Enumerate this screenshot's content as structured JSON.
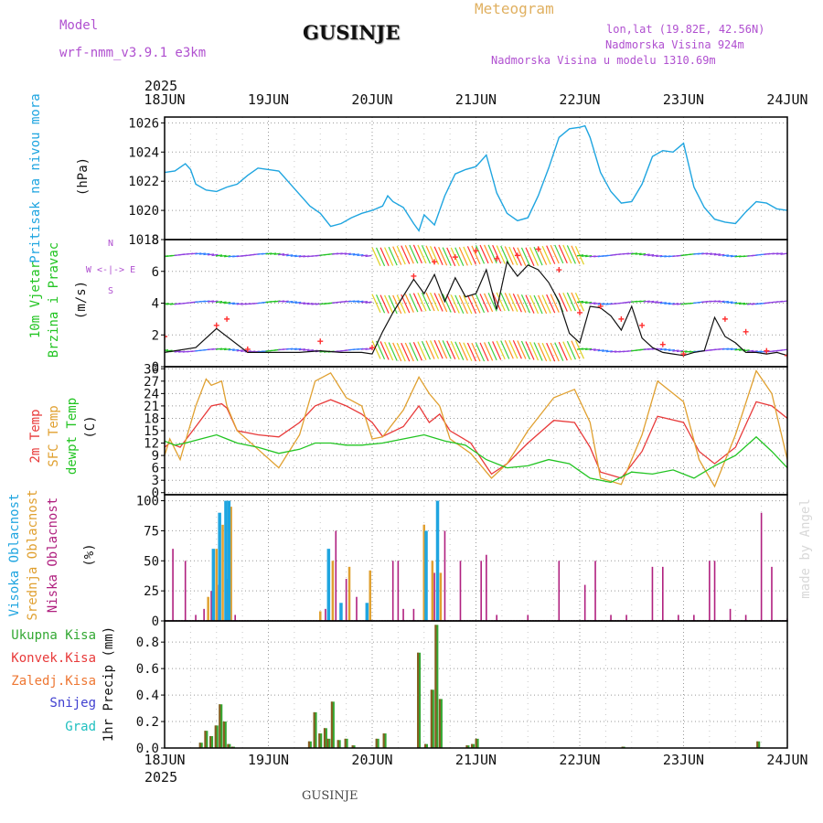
{
  "header": {
    "model_label": "Model",
    "model_name": "wrf-nmm_v3.9.1 e3km",
    "station": "GUSINJE",
    "kind": "Meteogram",
    "lonlat": "lon,lat (19.82E, 42.56N)",
    "elevation": "Nadmorska Visina 924m",
    "model_elevation": "Nadmorska Visina u modelu 1310.69m",
    "year": "2025",
    "footer_station": "GUSINJE",
    "watermark": "made by Angel"
  },
  "colors": {
    "pressure": "#1fa5e0",
    "temp2m": "#e83a3a",
    "sfc": "#e0a030",
    "dewpt": "#22c422",
    "low_cloud": "#b0207f",
    "mid_cloud": "#e0a030",
    "high_cloud": "#1fa5e0",
    "purple": "#b050d0",
    "total_precip": "#33a833",
    "conv_precip": "#e83a3a",
    "frozen": "#ee7733",
    "snow": "#4040d0",
    "grad": "#20c0c0",
    "gray_label": "#777777"
  },
  "chart_data": [
    {
      "id": "pressure",
      "type": "line",
      "title": "Pritisak na nivou mora",
      "ylabel": "(hPa)",
      "x_start": "18JUN",
      "x_end": "24JUN",
      "x_tick_labels": [
        "18JUN",
        "19JUN",
        "20JUN",
        "21JUN",
        "22JUN",
        "23JUN",
        "24JUN"
      ],
      "yticks": [
        1018,
        1020,
        1022,
        1024,
        1026
      ],
      "ylim": [
        1018,
        1026.4
      ],
      "series": [
        {
          "name": "MSLP",
          "x": [
            0,
            0.1,
            0.2,
            0.25,
            0.3,
            0.4,
            0.5,
            0.6,
            0.7,
            0.8,
            0.9,
            1.0,
            1.1,
            1.25,
            1.4,
            1.5,
            1.6,
            1.7,
            1.8,
            1.9,
            2.0,
            2.1,
            2.15,
            2.2,
            2.3,
            2.4,
            2.45,
            2.5,
            2.6,
            2.7,
            2.8,
            2.9,
            3.0,
            3.1,
            3.2,
            3.3,
            3.4,
            3.5,
            3.6,
            3.7,
            3.8,
            3.9,
            4.0,
            4.05,
            4.1,
            4.2,
            4.3,
            4.4,
            4.5,
            4.6,
            4.7,
            4.8,
            4.9,
            5.0,
            5.1,
            5.2,
            5.3,
            5.4,
            5.5,
            5.6,
            5.7,
            5.8,
            5.9,
            6.0
          ],
          "y": [
            1022.6,
            1022.7,
            1023.2,
            1022.8,
            1021.8,
            1021.4,
            1021.3,
            1021.6,
            1021.8,
            1022.4,
            1022.9,
            1022.8,
            1022.7,
            1021.5,
            1020.3,
            1019.8,
            1018.9,
            1019.1,
            1019.5,
            1019.8,
            1020.0,
            1020.3,
            1021.0,
            1020.6,
            1020.2,
            1019.1,
            1018.6,
            1019.7,
            1019.0,
            1021.0,
            1022.5,
            1022.8,
            1023.0,
            1023.8,
            1021.2,
            1019.8,
            1019.3,
            1019.5,
            1021.0,
            1022.9,
            1025.0,
            1025.6,
            1025.7,
            1025.8,
            1025.0,
            1022.6,
            1021.3,
            1020.5,
            1020.6,
            1021.8,
            1023.7,
            1024.1,
            1024.0,
            1024.6,
            1021.6,
            1020.2,
            1019.4,
            1019.2,
            1019.1,
            1019.9,
            1020.6,
            1020.5,
            1020.1,
            1020.0
          ]
        }
      ]
    },
    {
      "id": "wind",
      "type": "line",
      "title": "10m Vjetar",
      "title2": "Brzina i Pravac",
      "ylabel": "(m/s)",
      "compass": "W <-|-> E",
      "compass_n": "N",
      "compass_s": "S",
      "yticks": [
        0,
        2,
        4,
        6,
        8
      ],
      "ylim": [
        0,
        8
      ],
      "series": [
        {
          "name": "speed",
          "x": [
            0,
            0.3,
            0.5,
            0.8,
            1.0,
            1.3,
            1.5,
            1.7,
            1.9,
            2.0,
            2.1,
            2.2,
            2.4,
            2.5,
            2.6,
            2.7,
            2.8,
            2.9,
            3.0,
            3.1,
            3.2,
            3.3,
            3.4,
            3.5,
            3.6,
            3.7,
            3.8,
            3.9,
            4.0,
            4.1,
            4.2,
            4.3,
            4.4,
            4.5,
            4.6,
            4.7,
            4.8,
            4.9,
            5.0,
            5.1,
            5.2,
            5.3,
            5.4,
            5.5,
            5.6,
            5.7,
            5.8,
            5.9,
            6.0
          ],
          "y": [
            0.9,
            1.2,
            2.4,
            0.9,
            0.9,
            0.9,
            1.0,
            0.9,
            0.9,
            0.8,
            2.2,
            3.4,
            5.5,
            4.6,
            5.8,
            4.1,
            5.6,
            4.4,
            4.6,
            6.1,
            3.6,
            6.6,
            5.7,
            6.4,
            6.1,
            5.3,
            4.1,
            2.1,
            1.5,
            3.8,
            3.7,
            3.2,
            2.3,
            3.8,
            1.8,
            1.2,
            0.9,
            0.8,
            0.7,
            0.9,
            1.0,
            3.1,
            1.9,
            1.5,
            0.9,
            0.9,
            0.8,
            0.9,
            0.7
          ]
        },
        {
          "name": "gust",
          "x": [
            0,
            0.5,
            0.6,
            0.8,
            1.5,
            2.0,
            2.4,
            2.6,
            2.8,
            3.0,
            3.2,
            3.4,
            3.6,
            3.8,
            4.0,
            4.2,
            4.4,
            4.6,
            4.8,
            5.0,
            5.4,
            5.6,
            5.8,
            6.0
          ],
          "y": [
            1.9,
            2.6,
            3.0,
            1.1,
            1.6,
            1.2,
            5.7,
            6.6,
            6.9,
            7.3,
            6.8,
            7.0,
            7.4,
            6.1,
            3.4,
            3.8,
            3.0,
            2.6,
            1.4,
            0.8,
            3.0,
            2.2,
            1.0,
            0.7
          ]
        }
      ],
      "vector_rows": [
        1.0,
        4.0,
        7.0
      ]
    },
    {
      "id": "temperature",
      "type": "line",
      "title": "2m Temp",
      "title2": "SFC Temp",
      "title3": "dewpt Temp",
      "ylabel": "(C)",
      "yticks": [
        0,
        3,
        6,
        9,
        12,
        15,
        18,
        21,
        24,
        27,
        30
      ],
      "ylim": [
        -0.5,
        30.5
      ],
      "series": [
        {
          "name": "2m Temp",
          "x": [
            0,
            0.05,
            0.15,
            0.3,
            0.45,
            0.55,
            0.6,
            0.7,
            0.9,
            1.1,
            1.3,
            1.45,
            1.6,
            1.75,
            1.9,
            2.0,
            2.1,
            2.3,
            2.45,
            2.55,
            2.65,
            2.75,
            2.95,
            3.15,
            3.3,
            3.5,
            3.75,
            3.95,
            4.1,
            4.2,
            4.4,
            4.6,
            4.75,
            5.0,
            5.15,
            5.3,
            5.5,
            5.7,
            5.85,
            6.0
          ],
          "y": [
            11,
            12,
            11,
            16,
            21,
            21.5,
            20.5,
            15,
            14,
            13.5,
            17,
            21,
            22.5,
            21,
            19,
            17,
            13.6,
            16,
            21,
            17,
            19,
            15,
            12,
            4.5,
            7,
            12,
            17.5,
            17,
            11,
            5,
            3.5,
            10,
            18.5,
            17,
            10,
            7,
            11,
            22,
            21,
            18
          ]
        },
        {
          "name": "SFC Temp",
          "x": [
            0,
            0.05,
            0.15,
            0.3,
            0.4,
            0.45,
            0.55,
            0.6,
            0.7,
            0.9,
            1.1,
            1.3,
            1.45,
            1.6,
            1.75,
            1.9,
            2.0,
            2.1,
            2.3,
            2.45,
            2.55,
            2.65,
            2.75,
            2.95,
            3.15,
            3.3,
            3.5,
            3.75,
            3.95,
            4.1,
            4.2,
            4.4,
            4.6,
            4.75,
            5.0,
            5.15,
            5.3,
            5.5,
            5.7,
            5.85,
            6.0
          ],
          "y": [
            9,
            13,
            8,
            21,
            27.5,
            26,
            27,
            21,
            15,
            10.5,
            6,
            14,
            27,
            29,
            23,
            21,
            13,
            13.5,
            20,
            28,
            24,
            21,
            13,
            9.5,
            3.5,
            7,
            15,
            23,
            25,
            17,
            3.5,
            2,
            14,
            27,
            22,
            8,
            1.5,
            14,
            29.5,
            24,
            8
          ]
        },
        {
          "name": "dewpt Temp",
          "x": [
            0,
            0.1,
            0.2,
            0.35,
            0.5,
            0.7,
            0.9,
            1.1,
            1.3,
            1.45,
            1.6,
            1.75,
            1.9,
            2.1,
            2.3,
            2.5,
            2.7,
            2.9,
            3.1,
            3.3,
            3.5,
            3.7,
            3.9,
            4.1,
            4.3,
            4.5,
            4.7,
            4.9,
            5.1,
            5.3,
            5.5,
            5.7,
            5.85,
            6.0
          ],
          "y": [
            12.5,
            11.5,
            12,
            13,
            14,
            12,
            11,
            9.5,
            10.5,
            12,
            12,
            11.5,
            11.5,
            12,
            13,
            14,
            12.5,
            11.5,
            8,
            6,
            6.5,
            8,
            7,
            3.5,
            2.5,
            5,
            4.5,
            5.5,
            3.5,
            6.5,
            9,
            13.5,
            10,
            6
          ]
        }
      ]
    },
    {
      "id": "cloud",
      "type": "bar",
      "title": "Visoka Oblacnost",
      "title2": "Srednja Oblacnost",
      "title3": "Niska Oblacnost",
      "ylabel": "(%)",
      "yticks": [
        0,
        25,
        50,
        75,
        100
      ],
      "ylim": [
        0,
        105
      ],
      "series": [
        {
          "name": "Niska",
          "x": [
            0.08,
            0.2,
            0.3,
            0.38,
            0.45,
            0.52,
            0.6,
            0.68,
            1.55,
            1.65,
            1.75,
            1.85,
            2.2,
            2.25,
            2.3,
            2.4,
            2.5,
            2.6,
            2.7,
            2.85,
            3.05,
            3.1,
            3.2,
            3.5,
            3.8,
            4.05,
            4.15,
            4.3,
            4.45,
            4.7,
            4.8,
            4.95,
            5.1,
            5.25,
            5.3,
            5.45,
            5.6,
            5.75,
            5.85,
            6.0
          ],
          "y": [
            60,
            50,
            5,
            10,
            25,
            30,
            35,
            5,
            10,
            75,
            35,
            20,
            50,
            50,
            10,
            10,
            80,
            40,
            75,
            50,
            50,
            55,
            5,
            5,
            50,
            30,
            50,
            5,
            5,
            45,
            45,
            5,
            5,
            50,
            50,
            10,
            5,
            90,
            45,
            2
          ]
        },
        {
          "name": "Srednja",
          "x": [
            0.42,
            0.5,
            0.56,
            0.64,
            1.5,
            1.62,
            1.78,
            1.98,
            2.5,
            2.58,
            2.66
          ],
          "y": [
            20,
            60,
            80,
            95,
            8,
            50,
            45,
            42,
            80,
            50,
            40
          ]
        },
        {
          "name": "Visoka",
          "x": [
            0.47,
            0.53,
            0.59,
            0.62,
            1.58,
            1.7,
            1.95,
            2.52,
            2.63
          ],
          "y": [
            60,
            90,
            100,
            100,
            60,
            15,
            15,
            75,
            100
          ]
        }
      ]
    },
    {
      "id": "precip",
      "type": "bar",
      "title": "1hr Precip (mm)",
      "legend": [
        "Ukupna Kisa",
        "Konvek.Kisa",
        "Zaledj.Kisa",
        "Snijeg",
        "Grad"
      ],
      "yticks": [
        0.0,
        0.2,
        0.4,
        0.6,
        0.8
      ],
      "ylim": [
        0,
        0.96
      ],
      "series": [
        {
          "name": "total",
          "x": [
            0.35,
            0.4,
            0.45,
            0.5,
            0.54,
            0.58,
            0.62,
            0.66,
            1.4,
            1.45,
            1.5,
            1.55,
            1.58,
            1.62,
            1.68,
            1.75,
            1.82,
            2.05,
            2.12,
            2.45,
            2.52,
            2.58,
            2.62,
            2.66,
            2.92,
            2.97,
            3.01,
            4.42,
            5.72
          ],
          "y": [
            0.04,
            0.13,
            0.09,
            0.17,
            0.33,
            0.2,
            0.03,
            0.01,
            0.05,
            0.27,
            0.11,
            0.15,
            0.07,
            0.35,
            0.06,
            0.07,
            0.02,
            0.07,
            0.11,
            0.72,
            0.03,
            0.44,
            0.93,
            0.37,
            0.02,
            0.03,
            0.07,
            0.01,
            0.05
          ]
        }
      ]
    }
  ]
}
